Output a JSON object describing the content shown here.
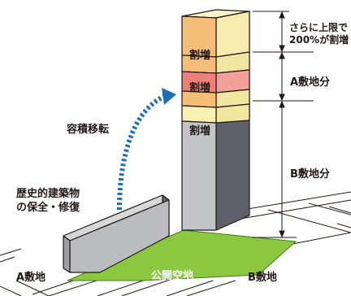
{
  "labels": {
    "bonus_top": "割増",
    "bonus_mid": "割増",
    "bonus_low": "割増",
    "transfer": "容積移転",
    "historic_line1": "歴史的建築物",
    "historic_line2": "の保全・修復",
    "upper_note_line1": "さらに上限で",
    "upper_note_line2": "200%が割増",
    "a_share": "A敷地分",
    "b_share": "B敷地分",
    "site_a": "A敷地",
    "site_b": "B敷地",
    "public_space": "公開空地"
  },
  "colors": {
    "bonus_orange": "#f4be78",
    "bonus_cream": "#fbf1b0",
    "bonus_pink": "#ee7f7a",
    "building_front": "#c4c5c9",
    "building_side": "#5d6068",
    "arrow_blue": "#1e6fb8",
    "ground_green": "#8dc63f"
  }
}
